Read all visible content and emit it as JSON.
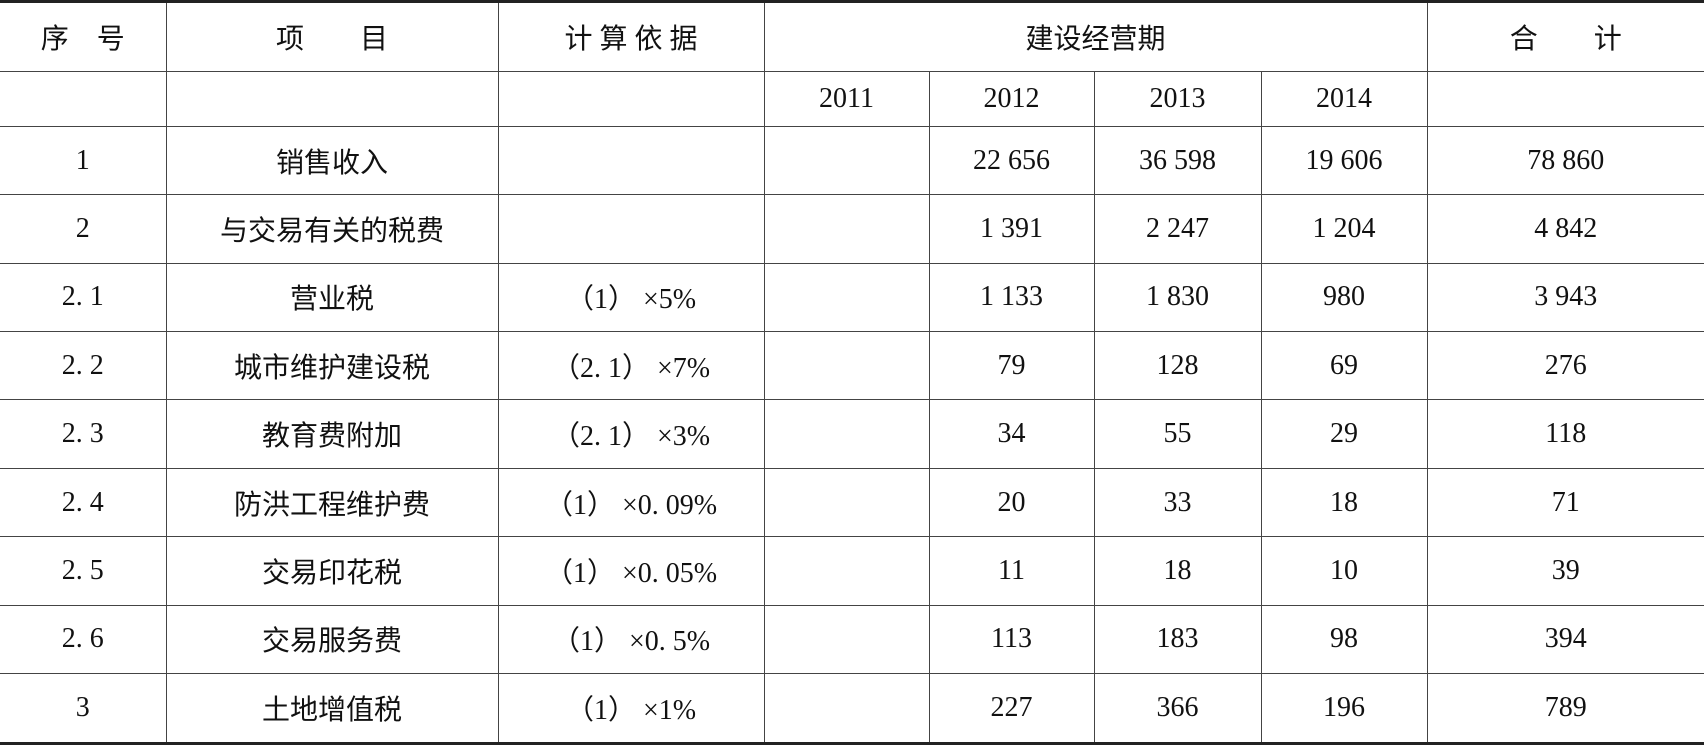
{
  "table": {
    "header": [
      "序　号",
      "项　　目",
      "计 算 依 据",
      "建设经营期",
      "合　　计"
    ],
    "years": [
      "2011",
      "2012",
      "2013",
      "2014"
    ],
    "rows": [
      {
        "no": "1",
        "item": "销售收入",
        "values": [
          null,
          "22 656",
          "36 598",
          "19 606"
        ],
        "total": "78 860"
      },
      {
        "no": "2",
        "item": "与交易有关的税费",
        "values": [
          null,
          "1 391",
          "2 247",
          "1 204"
        ],
        "total": "4 842"
      },
      {
        "no": "2. 1",
        "item": "营业税",
        "basis": "（1） ×5%",
        "values": [
          null,
          "1 133",
          "1 830",
          "980"
        ],
        "total": "3 943"
      },
      {
        "no": "2. 2",
        "item": "城市维护建设税",
        "basis": "（2. 1） ×7%",
        "values": [
          null,
          "79",
          "128",
          "69"
        ],
        "total": "276"
      },
      {
        "no": "2. 3",
        "item": "教育费附加",
        "basis": "（2. 1） ×3%",
        "values": [
          null,
          "34",
          "55",
          "29"
        ],
        "total": "118"
      },
      {
        "no": "2. 4",
        "item": "防洪工程维护费",
        "basis": "（1） ×0. 09%",
        "values": [
          null,
          "20",
          "33",
          "18"
        ],
        "total": "71"
      },
      {
        "no": "2. 5",
        "item": "交易印花税",
        "basis": "（1） ×0. 05%",
        "values": [
          null,
          "11",
          "18",
          "10"
        ],
        "total": "39"
      },
      {
        "no": "2. 6",
        "item": "交易服务费",
        "basis": "（1） ×0. 5%",
        "values": [
          null,
          "113",
          "183",
          "98"
        ],
        "total": "394"
      },
      {
        "no": "3",
        "item": "土地增值税",
        "basis": "（1） ×1%",
        "values": [
          null,
          "227",
          "366",
          "196"
        ],
        "total": "789"
      }
    ]
  }
}
